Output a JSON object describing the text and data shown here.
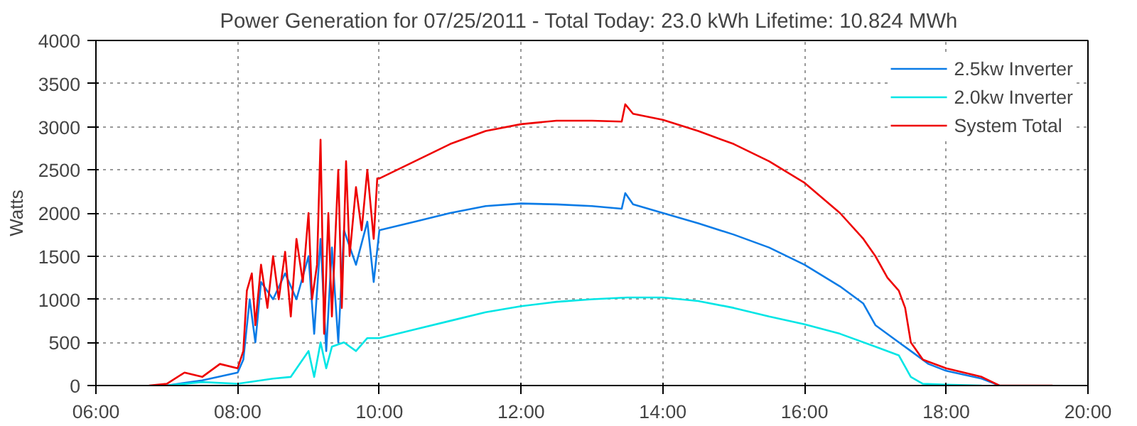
{
  "chart_data": {
    "type": "line",
    "title": "Power Generation for 07/25/2011 - Total Today: 23.0 kWh  Lifetime: 10.824 MWh",
    "ylabel": "Watts",
    "xlim": [
      6,
      20
    ],
    "xticks": [
      {
        "value": 6,
        "label": "06:00"
      },
      {
        "value": 8,
        "label": "08:00"
      },
      {
        "value": 10,
        "label": "10:00"
      },
      {
        "value": 12,
        "label": "12:00"
      },
      {
        "value": 14,
        "label": "14:00"
      },
      {
        "value": 16,
        "label": "16:00"
      },
      {
        "value": 18,
        "label": "18:00"
      },
      {
        "value": 20,
        "label": "20:00"
      }
    ],
    "ylim": [
      0,
      4000
    ],
    "yticks": [
      0,
      500,
      1000,
      1500,
      2000,
      2500,
      3000,
      3500,
      4000
    ],
    "grid": true,
    "legend": "top right",
    "line_style": "solid",
    "series": [
      {
        "name": "2.5kw Inverter",
        "color": "#0a7be6",
        "x": [
          7.0,
          7.5,
          8.0,
          8.08,
          8.17,
          8.25,
          8.33,
          8.5,
          8.67,
          8.83,
          9.0,
          9.08,
          9.17,
          9.25,
          9.33,
          9.42,
          9.5,
          9.67,
          9.83,
          9.92,
          10.0,
          10.5,
          11.0,
          11.5,
          12.0,
          12.5,
          13.0,
          13.42,
          13.47,
          13.58,
          14.0,
          14.5,
          15.0,
          15.5,
          16.0,
          16.5,
          16.83,
          17.0,
          17.25,
          17.5,
          17.75,
          18.0,
          18.5,
          18.75
        ],
        "values": [
          0,
          60,
          150,
          300,
          1000,
          500,
          1200,
          1000,
          1300,
          1000,
          1500,
          600,
          1700,
          400,
          1600,
          500,
          1800,
          1400,
          1900,
          1200,
          1800,
          1900,
          2000,
          2080,
          2110,
          2100,
          2080,
          2050,
          2230,
          2100,
          2000,
          1880,
          1750,
          1600,
          1400,
          1150,
          950,
          700,
          550,
          400,
          250,
          170,
          80,
          0
        ]
      },
      {
        "name": "2.0kw Inverter",
        "color": "#00e5e5",
        "x": [
          7.0,
          7.5,
          8.0,
          8.5,
          8.75,
          9.0,
          9.08,
          9.17,
          9.25,
          9.33,
          9.5,
          9.67,
          9.83,
          10.0,
          10.5,
          11.0,
          11.5,
          12.0,
          12.5,
          13.0,
          13.5,
          14.0,
          14.5,
          15.0,
          15.5,
          16.0,
          16.5,
          17.0,
          17.33,
          17.5,
          17.67,
          18.0,
          18.5
        ],
        "values": [
          0,
          40,
          20,
          80,
          100,
          400,
          100,
          500,
          200,
          450,
          500,
          400,
          550,
          550,
          650,
          750,
          850,
          920,
          970,
          1000,
          1020,
          1020,
          980,
          900,
          800,
          710,
          600,
          450,
          350,
          100,
          20,
          10,
          0
        ]
      },
      {
        "name": "System Total",
        "color": "#ee0000",
        "x": [
          6.75,
          7.0,
          7.25,
          7.5,
          7.75,
          8.0,
          8.08,
          8.13,
          8.2,
          8.25,
          8.33,
          8.42,
          8.5,
          8.58,
          8.67,
          8.75,
          8.83,
          8.92,
          9.0,
          9.05,
          9.12,
          9.17,
          9.22,
          9.28,
          9.33,
          9.42,
          9.47,
          9.53,
          9.58,
          9.67,
          9.75,
          9.83,
          9.92,
          9.97,
          10.0,
          10.5,
          11.0,
          11.5,
          12.0,
          12.5,
          13.0,
          13.42,
          13.47,
          13.58,
          14.0,
          14.5,
          15.0,
          15.5,
          16.0,
          16.5,
          16.83,
          17.0,
          17.17,
          17.33,
          17.42,
          17.5,
          17.67,
          18.0,
          18.5,
          18.75,
          19.5
        ],
        "values": [
          0,
          20,
          150,
          100,
          250,
          200,
          400,
          1100,
          1300,
          700,
          1400,
          900,
          1500,
          1000,
          1550,
          800,
          1700,
          1200,
          2000,
          1000,
          1400,
          2850,
          600,
          2000,
          800,
          2500,
          900,
          2600,
          1500,
          2300,
          1800,
          2500,
          1700,
          2400,
          2400,
          2600,
          2800,
          2950,
          3030,
          3070,
          3070,
          3060,
          3260,
          3150,
          3080,
          2950,
          2800,
          2600,
          2350,
          2000,
          1700,
          1500,
          1250,
          1100,
          900,
          500,
          300,
          200,
          100,
          0,
          0
        ]
      }
    ]
  }
}
